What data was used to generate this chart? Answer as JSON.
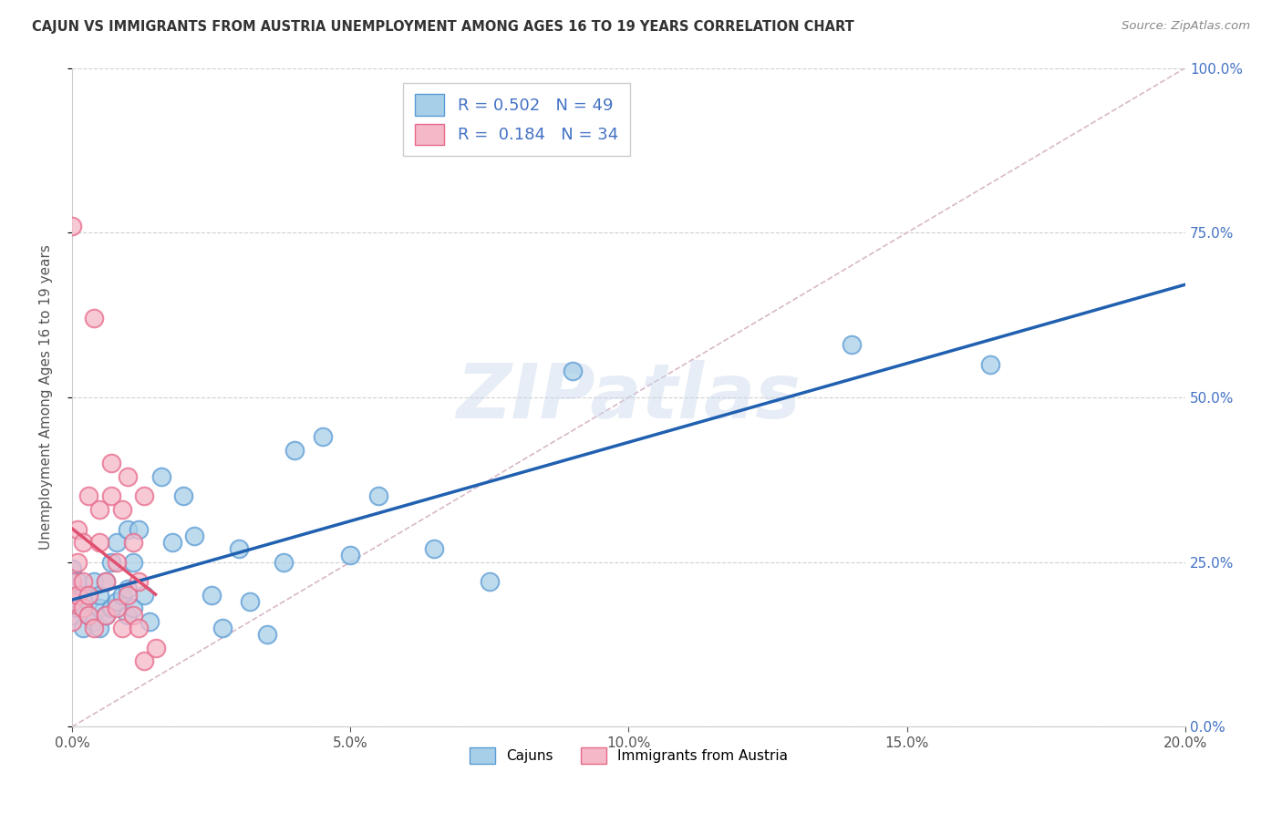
{
  "title": "CAJUN VS IMMIGRANTS FROM AUSTRIA UNEMPLOYMENT AMONG AGES 16 TO 19 YEARS CORRELATION CHART",
  "source": "Source: ZipAtlas.com",
  "ylabel_label": "Unemployment Among Ages 16 to 19 years",
  "xmin": 0.0,
  "xmax": 0.2,
  "ymin": 0.0,
  "ymax": 1.0,
  "legend_labels": [
    "Cajuns",
    "Immigrants from Austria"
  ],
  "r_cajun": 0.502,
  "n_cajun": 49,
  "r_austria": 0.184,
  "n_austria": 34,
  "color_cajun": "#a8cfe8",
  "color_austria": "#f4b8c8",
  "color_edge_cajun": "#5b9bd5",
  "color_edge_austria": "#e8698a",
  "color_line_cajun": "#2060b0",
  "color_line_austria": "#e05070",
  "color_diag": "#d8b8c8",
  "color_right_axis": "#4472c4",
  "watermark": "ZIPatlas",
  "cajun_x": [
    0.0,
    0.0,
    0.0,
    0.001,
    0.001,
    0.001,
    0.002,
    0.002,
    0.003,
    0.003,
    0.004,
    0.004,
    0.005,
    0.005,
    0.005,
    0.006,
    0.006,
    0.007,
    0.007,
    0.008,
    0.008,
    0.009,
    0.01,
    0.01,
    0.01,
    0.011,
    0.011,
    0.012,
    0.013,
    0.014,
    0.016,
    0.018,
    0.02,
    0.022,
    0.025,
    0.027,
    0.03,
    0.032,
    0.035,
    0.038,
    0.04,
    0.045,
    0.05,
    0.055,
    0.065,
    0.075,
    0.09,
    0.14,
    0.165
  ],
  "cajun_y": [
    0.17,
    0.21,
    0.24,
    0.18,
    0.2,
    0.22,
    0.15,
    0.2,
    0.17,
    0.19,
    0.16,
    0.22,
    0.15,
    0.18,
    0.2,
    0.17,
    0.22,
    0.25,
    0.18,
    0.19,
    0.28,
    0.2,
    0.17,
    0.21,
    0.3,
    0.18,
    0.25,
    0.3,
    0.2,
    0.16,
    0.38,
    0.28,
    0.35,
    0.29,
    0.2,
    0.15,
    0.27,
    0.19,
    0.14,
    0.25,
    0.42,
    0.44,
    0.26,
    0.35,
    0.27,
    0.22,
    0.54,
    0.58,
    0.55
  ],
  "austria_x": [
    0.0,
    0.0,
    0.0,
    0.0,
    0.001,
    0.001,
    0.001,
    0.002,
    0.002,
    0.002,
    0.003,
    0.003,
    0.003,
    0.004,
    0.004,
    0.005,
    0.005,
    0.006,
    0.006,
    0.007,
    0.007,
    0.008,
    0.008,
    0.009,
    0.009,
    0.01,
    0.01,
    0.011,
    0.011,
    0.012,
    0.012,
    0.013,
    0.013,
    0.015
  ],
  "austria_y": [
    0.16,
    0.19,
    0.22,
    0.76,
    0.2,
    0.25,
    0.3,
    0.18,
    0.22,
    0.28,
    0.17,
    0.2,
    0.35,
    0.15,
    0.62,
    0.28,
    0.33,
    0.17,
    0.22,
    0.35,
    0.4,
    0.18,
    0.25,
    0.15,
    0.33,
    0.2,
    0.38,
    0.17,
    0.28,
    0.15,
    0.22,
    0.1,
    0.35,
    0.12
  ]
}
